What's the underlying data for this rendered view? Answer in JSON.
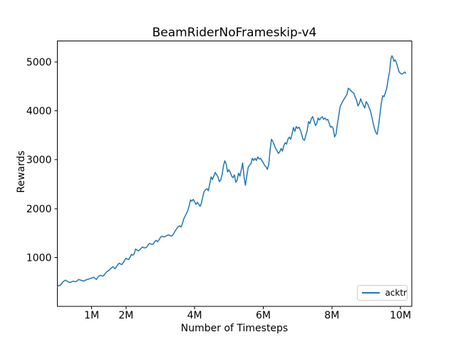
{
  "figure": {
    "background": "#ffffff",
    "frame_color": "#000000",
    "tick_color": "#000000",
    "legend_border_color": "#cccccc"
  },
  "chart_data": {
    "type": "line",
    "title": "BeamRiderNoFrameskip-v4",
    "xlabel": "Number of Timesteps",
    "ylabel": "Rewards",
    "grid": false,
    "xlim_millions": [
      0,
      10.33
    ],
    "ylim": [
      0,
      5430
    ],
    "xticks": {
      "values_millions": [
        1,
        2,
        4,
        6,
        8,
        10
      ],
      "labels": [
        "1M",
        "2M",
        "4M",
        "6M",
        "8M",
        "10M"
      ]
    },
    "yticks": {
      "values": [
        1000,
        2000,
        3000,
        4000,
        5000
      ],
      "labels": [
        "1000",
        "2000",
        "3000",
        "4000",
        "5000"
      ]
    },
    "legend": {
      "position": "lower right",
      "entries": [
        {
          "label": "acktr",
          "color": "#1f77b4"
        }
      ]
    },
    "series": [
      {
        "name": "acktr",
        "color": "#1f77b4",
        "line_width": 1.5,
        "points_millions_vs_reward": [
          [
            0.0,
            400
          ],
          [
            0.04,
            432
          ],
          [
            0.08,
            424
          ],
          [
            0.12,
            465
          ],
          [
            0.16,
            495
          ],
          [
            0.2,
            522
          ],
          [
            0.24,
            536
          ],
          [
            0.28,
            516
          ],
          [
            0.32,
            500
          ],
          [
            0.37,
            490
          ],
          [
            0.42,
            504
          ],
          [
            0.47,
            516
          ],
          [
            0.51,
            508
          ],
          [
            0.54,
            505
          ],
          [
            0.58,
            528
          ],
          [
            0.62,
            548
          ],
          [
            0.66,
            542
          ],
          [
            0.7,
            532
          ],
          [
            0.74,
            524
          ],
          [
            0.78,
            519
          ],
          [
            0.82,
            536
          ],
          [
            0.86,
            549
          ],
          [
            0.9,
            556
          ],
          [
            0.94,
            566
          ],
          [
            0.98,
            576
          ],
          [
            1.02,
            586
          ],
          [
            1.06,
            596
          ],
          [
            1.1,
            572
          ],
          [
            1.14,
            551
          ],
          [
            1.18,
            596
          ],
          [
            1.22,
            625
          ],
          [
            1.26,
            636
          ],
          [
            1.3,
            622
          ],
          [
            1.34,
            621
          ],
          [
            1.38,
            658
          ],
          [
            1.42,
            696
          ],
          [
            1.46,
            716
          ],
          [
            1.5,
            738
          ],
          [
            1.54,
            762
          ],
          [
            1.58,
            790
          ],
          [
            1.62,
            812
          ],
          [
            1.65,
            791
          ],
          [
            1.68,
            769
          ],
          [
            1.72,
            806
          ],
          [
            1.76,
            851
          ],
          [
            1.8,
            884
          ],
          [
            1.84,
            869
          ],
          [
            1.88,
            856
          ],
          [
            1.92,
            895
          ],
          [
            1.96,
            942
          ],
          [
            2.0,
            985
          ],
          [
            2.04,
            966
          ],
          [
            2.08,
            958
          ],
          [
            2.12,
            1011
          ],
          [
            2.16,
            1062
          ],
          [
            2.2,
            1046
          ],
          [
            2.24,
            1082
          ],
          [
            2.28,
            1174
          ],
          [
            2.32,
            1153
          ],
          [
            2.36,
            1136
          ],
          [
            2.4,
            1158
          ],
          [
            2.44,
            1187
          ],
          [
            2.48,
            1216
          ],
          [
            2.52,
            1200
          ],
          [
            2.56,
            1198
          ],
          [
            2.6,
            1212
          ],
          [
            2.64,
            1250
          ],
          [
            2.68,
            1288
          ],
          [
            2.72,
            1276
          ],
          [
            2.76,
            1271
          ],
          [
            2.8,
            1277
          ],
          [
            2.84,
            1330
          ],
          [
            2.88,
            1352
          ],
          [
            2.92,
            1324
          ],
          [
            2.96,
            1360
          ],
          [
            3.0,
            1406
          ],
          [
            3.04,
            1436
          ],
          [
            3.08,
            1429
          ],
          [
            3.12,
            1421
          ],
          [
            3.16,
            1436
          ],
          [
            3.2,
            1452
          ],
          [
            3.24,
            1464
          ],
          [
            3.28,
            1449
          ],
          [
            3.32,
            1438
          ],
          [
            3.36,
            1455
          ],
          [
            3.4,
            1502
          ],
          [
            3.44,
            1552
          ],
          [
            3.48,
            1592
          ],
          [
            3.52,
            1630
          ],
          [
            3.56,
            1648
          ],
          [
            3.6,
            1622
          ],
          [
            3.64,
            1680
          ],
          [
            3.68,
            1784
          ],
          [
            3.72,
            1842
          ],
          [
            3.76,
            1900
          ],
          [
            3.8,
            1958
          ],
          [
            3.84,
            2052
          ],
          [
            3.88,
            2180
          ],
          [
            3.92,
            2153
          ],
          [
            3.96,
            2190
          ],
          [
            4.0,
            2142
          ],
          [
            4.04,
            2086
          ],
          [
            4.08,
            2130
          ],
          [
            4.12,
            2088
          ],
          [
            4.16,
            2046
          ],
          [
            4.2,
            2118
          ],
          [
            4.24,
            2250
          ],
          [
            4.28,
            2352
          ],
          [
            4.32,
            2388
          ],
          [
            4.36,
            2406
          ],
          [
            4.4,
            2364
          ],
          [
            4.44,
            2500
          ],
          [
            4.48,
            2648
          ],
          [
            4.52,
            2596
          ],
          [
            4.56,
            2668
          ],
          [
            4.6,
            2740
          ],
          [
            4.64,
            2694
          ],
          [
            4.68,
            2650
          ],
          [
            4.72,
            2552
          ],
          [
            4.76,
            2580
          ],
          [
            4.8,
            2696
          ],
          [
            4.84,
            2870
          ],
          [
            4.88,
            2980
          ],
          [
            4.92,
            2908
          ],
          [
            4.96,
            2752
          ],
          [
            5.0,
            2796
          ],
          [
            5.04,
            2740
          ],
          [
            5.08,
            2664
          ],
          [
            5.12,
            2632
          ],
          [
            5.16,
            2690
          ],
          [
            5.2,
            2540
          ],
          [
            5.24,
            2586
          ],
          [
            5.28,
            2726
          ],
          [
            5.32,
            2666
          ],
          [
            5.36,
            2790
          ],
          [
            5.4,
            2936
          ],
          [
            5.44,
            2650
          ],
          [
            5.48,
            2478
          ],
          [
            5.52,
            2660
          ],
          [
            5.56,
            2842
          ],
          [
            5.6,
            2890
          ],
          [
            5.64,
            2916
          ],
          [
            5.68,
            3028
          ],
          [
            5.72,
            2986
          ],
          [
            5.76,
            3028
          ],
          [
            5.8,
            2986
          ],
          [
            5.84,
            3058
          ],
          [
            5.88,
            3014
          ],
          [
            5.92,
            3030
          ],
          [
            5.96,
            2986
          ],
          [
            6.0,
            2940
          ],
          [
            6.04,
            2884
          ],
          [
            6.08,
            2858
          ],
          [
            6.12,
            2802
          ],
          [
            6.16,
            2902
          ],
          [
            6.2,
            3200
          ],
          [
            6.24,
            3418
          ],
          [
            6.28,
            3376
          ],
          [
            6.32,
            3304
          ],
          [
            6.36,
            3230
          ],
          [
            6.4,
            3186
          ],
          [
            6.44,
            3130
          ],
          [
            6.48,
            3160
          ],
          [
            6.52,
            3230
          ],
          [
            6.56,
            3176
          ],
          [
            6.6,
            3290
          ],
          [
            6.64,
            3348
          ],
          [
            6.68,
            3320
          ],
          [
            6.72,
            3420
          ],
          [
            6.76,
            3464
          ],
          [
            6.8,
            3420
          ],
          [
            6.84,
            3522
          ],
          [
            6.88,
            3660
          ],
          [
            6.92,
            3580
          ],
          [
            6.96,
            3680
          ],
          [
            7.0,
            3642
          ],
          [
            7.04,
            3668
          ],
          [
            7.08,
            3610
          ],
          [
            7.12,
            3520
          ],
          [
            7.16,
            3420
          ],
          [
            7.2,
            3398
          ],
          [
            7.24,
            3500
          ],
          [
            7.28,
            3590
          ],
          [
            7.32,
            3782
          ],
          [
            7.36,
            3740
          ],
          [
            7.4,
            3838
          ],
          [
            7.44,
            3884
          ],
          [
            7.48,
            3800
          ],
          [
            7.52,
            3700
          ],
          [
            7.56,
            3740
          ],
          [
            7.6,
            3855
          ],
          [
            7.64,
            3812
          ],
          [
            7.68,
            3855
          ],
          [
            7.72,
            3880
          ],
          [
            7.76,
            3826
          ],
          [
            7.8,
            3855
          ],
          [
            7.84,
            3812
          ],
          [
            7.88,
            3826
          ],
          [
            7.92,
            3754
          ],
          [
            7.96,
            3668
          ],
          [
            8.0,
            3680
          ],
          [
            8.04,
            3638
          ],
          [
            8.08,
            3466
          ],
          [
            8.12,
            3522
          ],
          [
            8.16,
            3730
          ],
          [
            8.2,
            3900
          ],
          [
            8.24,
            4080
          ],
          [
            8.28,
            4146
          ],
          [
            8.32,
            4200
          ],
          [
            8.36,
            4246
          ],
          [
            8.4,
            4290
          ],
          [
            8.44,
            4340
          ],
          [
            8.48,
            4462
          ],
          [
            8.52,
            4440
          ],
          [
            8.56,
            4406
          ],
          [
            8.6,
            4380
          ],
          [
            8.64,
            4362
          ],
          [
            8.68,
            4280
          ],
          [
            8.72,
            4216
          ],
          [
            8.76,
            4100
          ],
          [
            8.8,
            4150
          ],
          [
            8.84,
            4246
          ],
          [
            8.88,
            4170
          ],
          [
            8.92,
            4112
          ],
          [
            8.96,
            4060
          ],
          [
            9.0,
            4188
          ],
          [
            9.04,
            4145
          ],
          [
            9.08,
            4072
          ],
          [
            9.12,
            4010
          ],
          [
            9.16,
            3890
          ],
          [
            9.2,
            3760
          ],
          [
            9.24,
            3640
          ],
          [
            9.28,
            3560
          ],
          [
            9.32,
            3522
          ],
          [
            9.36,
            3700
          ],
          [
            9.4,
            3920
          ],
          [
            9.44,
            4150
          ],
          [
            9.48,
            4310
          ],
          [
            9.52,
            4290
          ],
          [
            9.56,
            4370
          ],
          [
            9.6,
            4460
          ],
          [
            9.64,
            4650
          ],
          [
            9.68,
            4800
          ],
          [
            9.72,
            5060
          ],
          [
            9.75,
            5128
          ],
          [
            9.78,
            5086
          ],
          [
            9.81,
            5014
          ],
          [
            9.84,
            5044
          ],
          [
            9.87,
            5012
          ],
          [
            9.9,
            4940
          ],
          [
            9.93,
            4868
          ],
          [
            9.96,
            4796
          ],
          [
            10.0,
            4768
          ],
          [
            10.04,
            4754
          ],
          [
            10.08,
            4768
          ],
          [
            10.12,
            4796
          ],
          [
            10.15,
            4772
          ]
        ]
      }
    ]
  }
}
